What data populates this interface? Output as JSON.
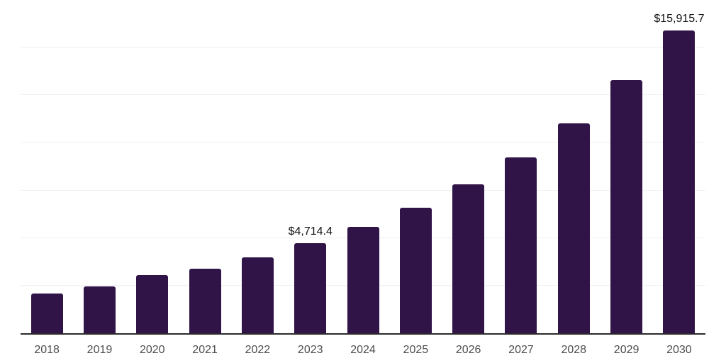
{
  "chart_data": {
    "type": "bar",
    "title": "",
    "xlabel": "",
    "ylabel": "",
    "categories": [
      "2018",
      "2019",
      "2020",
      "2021",
      "2022",
      "2023",
      "2024",
      "2025",
      "2026",
      "2027",
      "2028",
      "2029",
      "2030"
    ],
    "values": [
      2100,
      2460,
      3060,
      3380,
      3990,
      4714.4,
      5570,
      6590,
      7810,
      9240,
      11040,
      13280,
      15915.7
    ],
    "data_labels": [
      null,
      null,
      null,
      null,
      null,
      "$4,714.4",
      null,
      null,
      null,
      null,
      null,
      null,
      "$15,915.7"
    ],
    "ylim": [
      0,
      17500
    ],
    "gridline_interval": 2500,
    "grid": true,
    "legend_position": "none",
    "colors": {
      "bar": "#301347",
      "axis_line": "#2b2b2b",
      "gridline": "#f0f0f0",
      "tick_label": "#4d4d4d",
      "data_label": "#111111",
      "background": "#ffffff"
    }
  }
}
